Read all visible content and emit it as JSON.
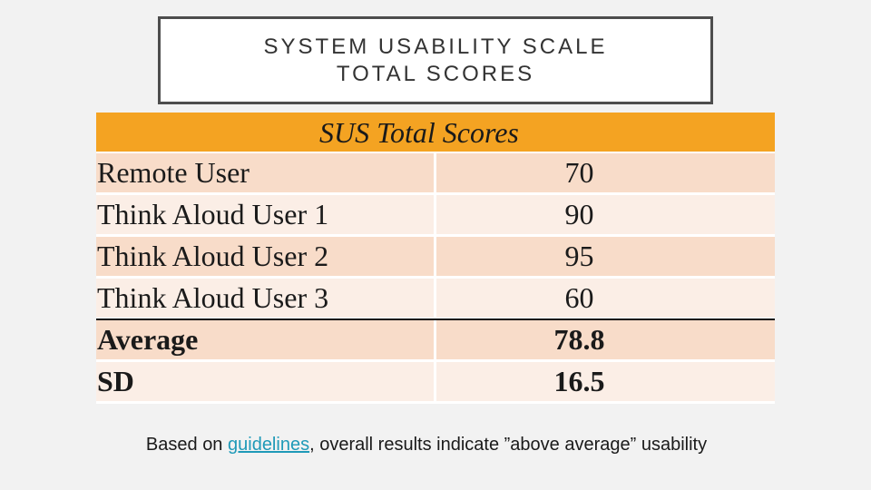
{
  "title": {
    "line1": "SYSTEM USABILITY SCALE",
    "line2": "TOTAL SCORES"
  },
  "table": {
    "header": "SUS Total Scores",
    "rows": [
      {
        "label": "Remote User",
        "value": "70"
      },
      {
        "label": "Think Aloud User 1",
        "value": "90"
      },
      {
        "label": "Think Aloud User 2",
        "value": "95"
      },
      {
        "label": "Think Aloud User 3",
        "value": "60"
      },
      {
        "label": "Average",
        "value": "78.8"
      },
      {
        "label": "SD",
        "value": "16.5"
      }
    ]
  },
  "note": {
    "prefix": "Based on ",
    "link": "guidelines",
    "suffix": ", overall results indicate ”above average” usability"
  },
  "colors": {
    "header_bg": "#f4a322",
    "row_dark": "#f8dcc9",
    "row_light": "#fbeee6",
    "link": "#1f9ab8"
  }
}
